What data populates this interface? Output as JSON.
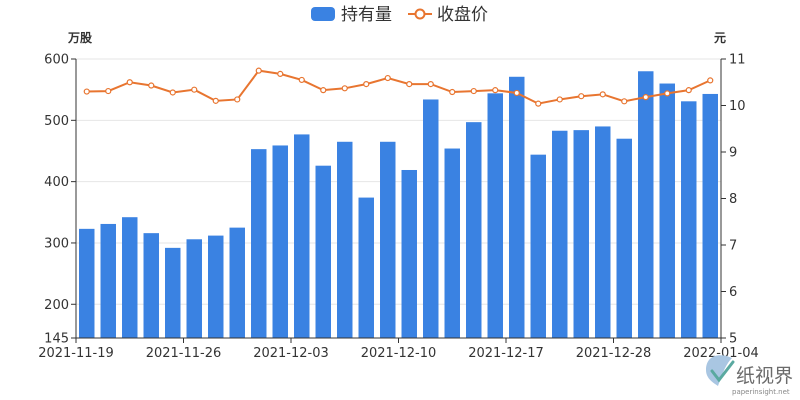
{
  "chart_data": {
    "type": "bar",
    "legend": {
      "position": "top-center",
      "bar_series": "持有量",
      "line_series": "收盘价"
    },
    "left_axis": {
      "unit": "万股",
      "ylim": [
        145,
        600
      ],
      "ticks": [
        "145",
        "200",
        "300",
        "400",
        "500",
        "600"
      ],
      "tick_values": [
        145,
        200,
        300,
        400,
        500,
        600
      ]
    },
    "right_axis": {
      "unit": "元",
      "ylim": [
        5,
        11
      ],
      "ticks": [
        "5",
        "6",
        "7",
        "8",
        "9",
        "10",
        "11"
      ],
      "tick_values": [
        5,
        6,
        7,
        8,
        9,
        10,
        11
      ]
    },
    "x_labels": [
      "2021-11-19",
      "2021-11-26",
      "2021-12-03",
      "2021-12-10",
      "2021-12-17",
      "2021-12-28",
      "2022-01-04"
    ],
    "x_label_indices": [
      0,
      5,
      10,
      15,
      20,
      25,
      30
    ],
    "grid": true,
    "colors": {
      "bar": "#3a82e2",
      "line": "#e87530",
      "grid": "#e6e6e6",
      "axis": "#333333"
    },
    "series": [
      {
        "name": "持有量",
        "type": "bar",
        "axis": "left",
        "values": [
          323,
          331,
          342,
          316,
          292,
          306,
          312,
          325,
          453,
          459,
          477,
          426,
          465,
          374,
          465,
          419,
          534,
          454,
          497,
          544,
          571,
          444,
          483,
          484,
          490,
          470,
          580,
          560,
          531,
          543
        ]
      },
      {
        "name": "收盘价",
        "type": "line",
        "axis": "right",
        "values": [
          10.3,
          10.31,
          10.5,
          10.43,
          10.28,
          10.34,
          10.1,
          10.13,
          10.75,
          10.68,
          10.55,
          10.33,
          10.37,
          10.46,
          10.59,
          10.46,
          10.46,
          10.29,
          10.31,
          10.33,
          10.27,
          10.04,
          10.13,
          10.2,
          10.24,
          10.09,
          10.18,
          10.26,
          10.33,
          10.54
        ]
      }
    ]
  },
  "watermark": {
    "logo_text": "纸视界",
    "url": "paperinsight.net"
  }
}
